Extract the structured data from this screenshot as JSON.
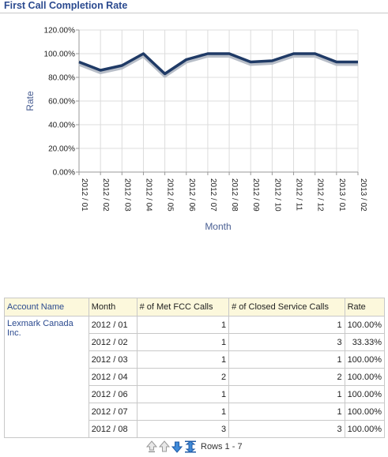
{
  "title": "First Call Completion Rate",
  "chart_data": {
    "type": "line",
    "title": "",
    "xlabel": "Month",
    "ylabel": "Rate",
    "categories": [
      "2012 / 01",
      "2012 / 02",
      "2012 / 03",
      "2012 / 04",
      "2012 / 05",
      "2012 / 06",
      "2012 / 07",
      "2012 / 08",
      "2012 / 09",
      "2012 / 10",
      "2012 / 11",
      "2012 / 12",
      "2013 / 01",
      "2013 / 02"
    ],
    "series": [
      {
        "values": [
          93,
          86,
          90,
          100,
          83,
          95,
          100,
          100,
          93,
          94,
          100,
          100,
          93,
          93
        ]
      }
    ],
    "ylim": [
      0,
      120
    ],
    "yticks": [
      "0.00%",
      "20.00%",
      "40.00%",
      "60.00%",
      "80.00%",
      "100.00%",
      "120.00%"
    ],
    "grid": true,
    "line_color": "#1f3a66"
  },
  "table": {
    "headers": [
      "Account Name",
      "Month",
      "# of Met FCC Calls",
      "# of Closed Service Calls",
      "Rate"
    ],
    "account": "Lexmark Canada Inc.",
    "rows": [
      [
        "2012 / 01",
        "1",
        "1",
        "100.00%"
      ],
      [
        "2012 / 02",
        "1",
        "3",
        "33.33%"
      ],
      [
        "2012 / 03",
        "1",
        "1",
        "100.00%"
      ],
      [
        "2012 / 04",
        "2",
        "2",
        "100.00%"
      ],
      [
        "2012 / 06",
        "1",
        "1",
        "100.00%"
      ],
      [
        "2012 / 07",
        "1",
        "1",
        "100.00%"
      ],
      [
        "2012 / 08",
        "3",
        "3",
        "100.00%"
      ]
    ]
  },
  "pager": {
    "rows_label": "Rows 1 - 7",
    "icons": [
      "first-page-icon",
      "previous-page-icon",
      "next-page-icon",
      "all-rows-icon"
    ]
  }
}
